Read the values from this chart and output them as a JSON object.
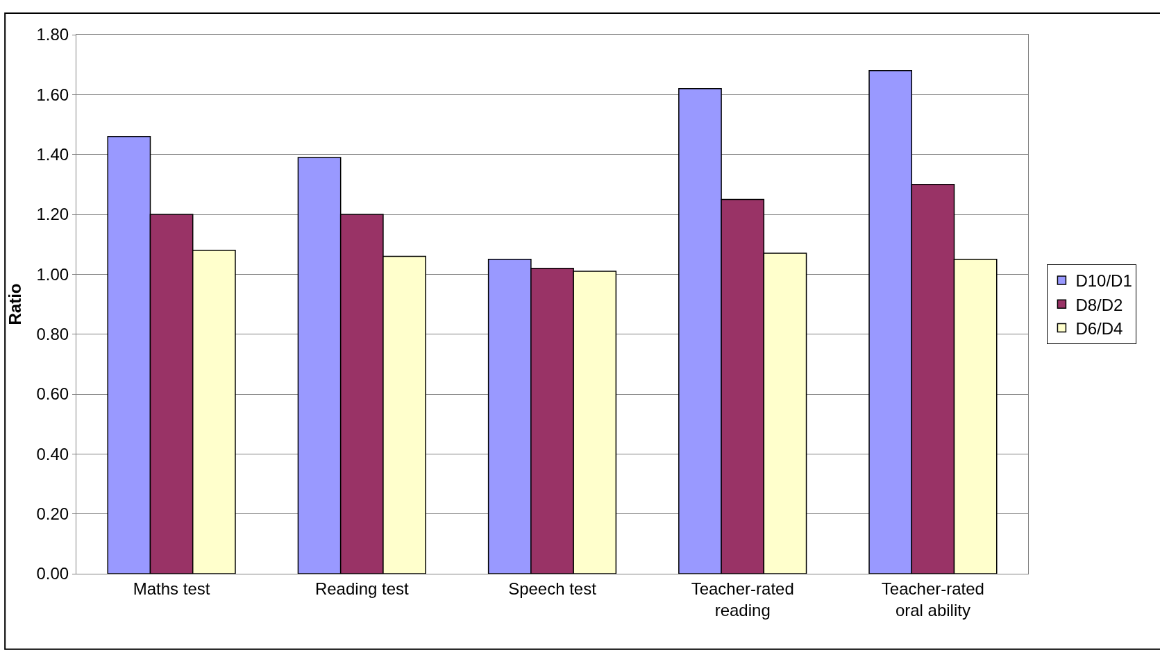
{
  "chart_data": {
    "type": "bar",
    "ylabel": "Ratio",
    "categories": [
      "Maths test",
      "Reading test",
      "Speech test",
      "Teacher-rated reading",
      "Teacher-rated oral ability"
    ],
    "series": [
      {
        "name": "D10/D1",
        "color": "#9999ff",
        "values": [
          1.46,
          1.39,
          1.05,
          1.62,
          1.68
        ]
      },
      {
        "name": "D8/D2",
        "color": "#993366",
        "values": [
          1.2,
          1.2,
          1.02,
          1.25,
          1.3
        ]
      },
      {
        "name": "D6/D4",
        "color": "#ffffcc",
        "values": [
          1.08,
          1.06,
          1.01,
          1.07,
          1.05
        ]
      }
    ],
    "ylim": [
      0,
      1.8
    ],
    "yticks": [
      {
        "value": 0,
        "label": "0.00"
      },
      {
        "value": 0.2,
        "label": "0.20"
      },
      {
        "value": 0.4,
        "label": "0.40"
      },
      {
        "value": 0.6,
        "label": "0.60"
      },
      {
        "value": 0.8,
        "label": "0.80"
      },
      {
        "value": 1.0,
        "label": "1.00"
      },
      {
        "value": 1.2,
        "label": "1.20"
      },
      {
        "value": 1.4,
        "label": "1.40"
      },
      {
        "value": 1.6,
        "label": "1.60"
      },
      {
        "value": 1.8,
        "label": "1.80"
      }
    ],
    "grid": "y",
    "legend": "right"
  }
}
